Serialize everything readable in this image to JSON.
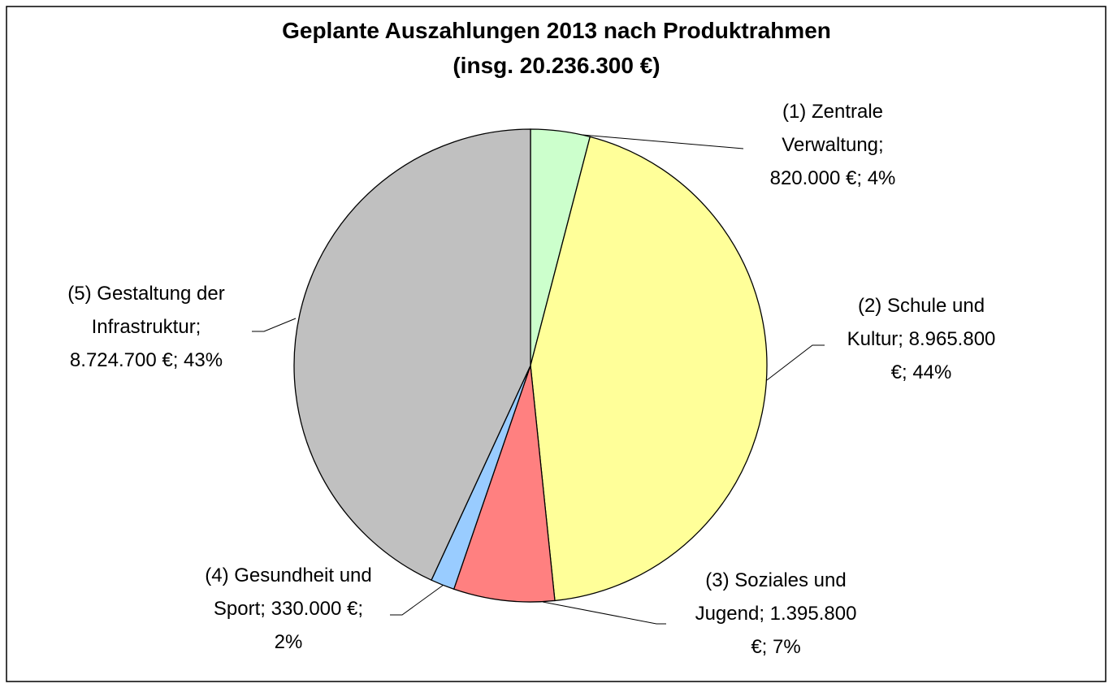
{
  "chart_data": {
    "type": "pie",
    "title": [
      "Geplante Auszahlungen 2013 nach Produktrahmen",
      "(insg. 20.236.300 €)"
    ],
    "categories": [
      "(1) Zentrale Verwaltung",
      "(2) Schule und Kultur",
      "(3) Soziales und Jugend",
      "(4) Gesundheit und Sport",
      "(5) Gestaltung der Infrastruktur"
    ],
    "values": [
      820000,
      8965800,
      1395800,
      330000,
      8724700
    ],
    "label_lines": [
      [
        "(1) Zentrale",
        "Verwaltung;",
        "820.000 €; 4%"
      ],
      [
        "(2) Schule und",
        "Kultur; 8.965.800",
        "€; 44%"
      ],
      [
        "(3) Soziales und",
        "Jugend; 1.395.800",
        "€; 7%"
      ],
      [
        "(4) Gesundheit und",
        "Sport; 330.000 €;",
        "2%"
      ],
      [
        "(5) Gestaltung der",
        "Infrastruktur;",
        "8.724.700 €; 43%"
      ]
    ],
    "colors": [
      "#ccffcc",
      "#ffff99",
      "#ff8080",
      "#99ccff",
      "#c0c0c0"
    ]
  }
}
